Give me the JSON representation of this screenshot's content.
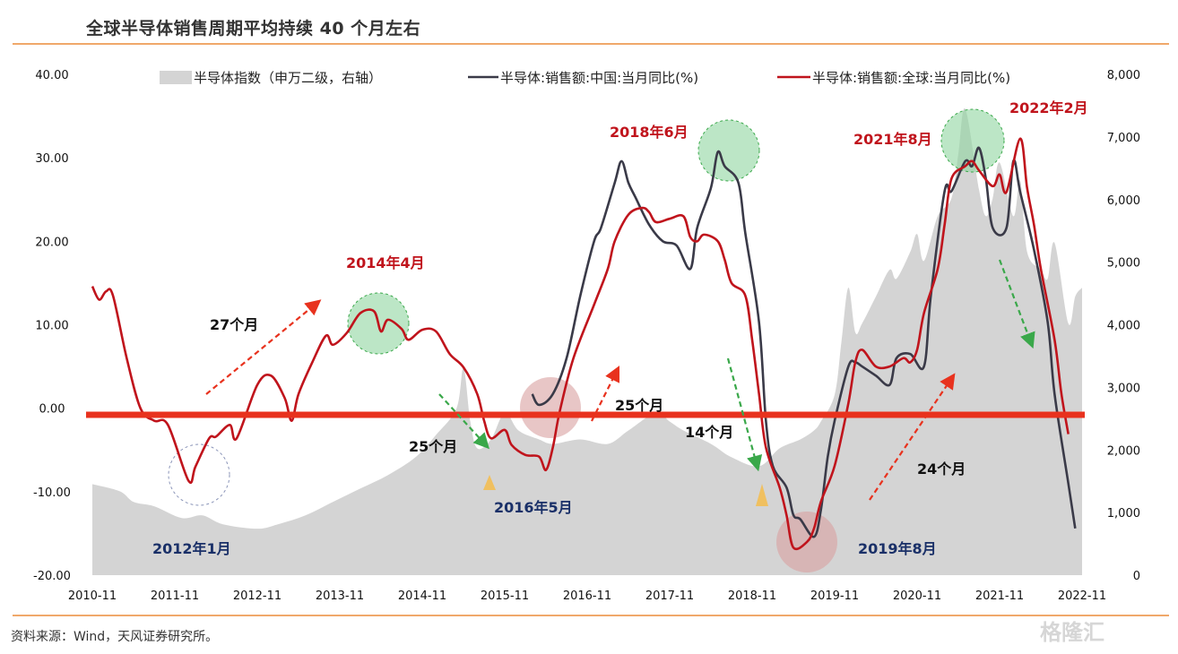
{
  "title": "全球半导体销售周期平均持续 40 个月左右",
  "source": "资料来源：Wind，天风证券研究所。",
  "watermark": "格隆汇",
  "chart_data": {
    "type": "line",
    "title": "全球半导体销售周期平均持续 40 个月左右",
    "xlim": [
      "2010-11",
      "2022-11"
    ],
    "x_ticks": [
      "2010-11",
      "2011-11",
      "2012-11",
      "2013-11",
      "2014-11",
      "2015-11",
      "2016-11",
      "2017-11",
      "2018-11",
      "2019-11",
      "2020-11",
      "2021-11",
      "2022-11"
    ],
    "y_left": {
      "lim": [
        -20,
        40
      ],
      "ticks": [
        "-20.00",
        "-10.00",
        "0.00",
        "10.00",
        "20.00",
        "30.00",
        "40.00"
      ]
    },
    "y_right": {
      "lim": [
        0,
        8000
      ],
      "ticks": [
        "0",
        "1,000",
        "2,000",
        "3,000",
        "4,000",
        "5,000",
        "6,000",
        "7,000",
        "8,000"
      ]
    },
    "grid": false,
    "legend_position": "top",
    "zero_line_color": "#e8321e",
    "series": [
      {
        "name": "半导体指数（申万二级，右轴）",
        "type": "area",
        "axis": "right",
        "color": "#d4d4d4",
        "points": [
          [
            "2010-11",
            1455
          ],
          [
            "2011-03",
            1340
          ],
          [
            "2011-05",
            1170
          ],
          [
            "2011-08",
            1100
          ],
          [
            "2011-12",
            913
          ],
          [
            "2012-03",
            955
          ],
          [
            "2012-06",
            813
          ],
          [
            "2012-11",
            742
          ],
          [
            "2013-02",
            813
          ],
          [
            "2013-06",
            955
          ],
          [
            "2013-10",
            1170
          ],
          [
            "2014-02",
            1384
          ],
          [
            "2014-06",
            1598
          ],
          [
            "2014-10",
            1883
          ],
          [
            "2015-01",
            2240
          ],
          [
            "2015-04",
            2668
          ],
          [
            "2015-05",
            3310
          ],
          [
            "2015-06",
            2454
          ],
          [
            "2015-07",
            2026
          ],
          [
            "2015-09",
            2168
          ],
          [
            "2015-11",
            2596
          ],
          [
            "2016-01",
            2311
          ],
          [
            "2016-04",
            2168
          ],
          [
            "2016-06",
            2097
          ],
          [
            "2016-10",
            2168
          ],
          [
            "2017-02",
            2097
          ],
          [
            "2017-05",
            2311
          ],
          [
            "2017-09",
            2596
          ],
          [
            "2017-11",
            2454
          ],
          [
            "2018-01",
            2311
          ],
          [
            "2018-05",
            2097
          ],
          [
            "2018-08",
            1883
          ],
          [
            "2018-12",
            1740
          ],
          [
            "2019-03",
            2026
          ],
          [
            "2019-06",
            2168
          ],
          [
            "2019-08",
            2311
          ],
          [
            "2019-09",
            2454
          ],
          [
            "2019-11",
            2882
          ],
          [
            "2019-12",
            3738
          ],
          [
            "2020-01",
            4593
          ],
          [
            "2020-02",
            3880
          ],
          [
            "2020-03",
            4022
          ],
          [
            "2020-05",
            4451
          ],
          [
            "2020-07",
            4879
          ],
          [
            "2020-08",
            4736
          ],
          [
            "2020-10",
            5164
          ],
          [
            "2020-11",
            5449
          ],
          [
            "2020-12",
            5021
          ],
          [
            "2021-02",
            5735
          ],
          [
            "2021-04",
            6020
          ],
          [
            "2021-05",
            6733
          ],
          [
            "2021-06",
            7447
          ],
          [
            "2021-08",
            6163
          ],
          [
            "2021-09",
            5735
          ],
          [
            "2021-10",
            6020
          ],
          [
            "2021-11",
            6591
          ],
          [
            "2022-01",
            5735
          ],
          [
            "2022-02",
            6305
          ],
          [
            "2022-03",
            5164
          ],
          [
            "2022-05",
            4879
          ],
          [
            "2022-06",
            4736
          ],
          [
            "2022-07",
            5307
          ],
          [
            "2022-09",
            4022
          ],
          [
            "2022-10",
            4451
          ],
          [
            "2022-11",
            4593
          ]
        ]
      },
      {
        "name": "半导体:销售额:中国:当月同比(%)",
        "type": "line",
        "axis": "left",
        "color": "#3a3a48",
        "points": [
          [
            "2016-03",
            1.7
          ],
          [
            "2016-04",
            0.4
          ],
          [
            "2016-06",
            1.7
          ],
          [
            "2016-08",
            6
          ],
          [
            "2016-10",
            13.5
          ],
          [
            "2016-12",
            20
          ],
          [
            "2017-01",
            21.6
          ],
          [
            "2017-03",
            27
          ],
          [
            "2017-04",
            29.6
          ],
          [
            "2017-05",
            27
          ],
          [
            "2017-06",
            25.3
          ],
          [
            "2017-08",
            22
          ],
          [
            "2017-10",
            20
          ],
          [
            "2017-12",
            19.5
          ],
          [
            "2018-02",
            16.7
          ],
          [
            "2018-03",
            21.6
          ],
          [
            "2018-05",
            26.4
          ],
          [
            "2018-06",
            30.7
          ],
          [
            "2018-07",
            29
          ],
          [
            "2018-09",
            27
          ],
          [
            "2018-10",
            21
          ],
          [
            "2018-12",
            10.3
          ],
          [
            "2019-01",
            -1.5
          ],
          [
            "2019-02",
            -6.9
          ],
          [
            "2019-04",
            -9.5
          ],
          [
            "2019-05",
            -12.8
          ],
          [
            "2019-06",
            -13.3
          ],
          [
            "2019-08",
            -15.4
          ],
          [
            "2019-09",
            -12.2
          ],
          [
            "2019-10",
            -5.8
          ],
          [
            "2019-11",
            -1.5
          ],
          [
            "2020-01",
            5
          ],
          [
            "2020-02",
            5.5
          ],
          [
            "2020-03",
            5
          ],
          [
            "2020-05",
            3.9
          ],
          [
            "2020-07",
            2.8
          ],
          [
            "2020-08",
            6
          ],
          [
            "2020-10",
            6.5
          ],
          [
            "2020-12",
            5
          ],
          [
            "2021-01",
            13.5
          ],
          [
            "2021-03",
            26
          ],
          [
            "2021-04",
            26
          ],
          [
            "2021-06",
            29.6
          ],
          [
            "2021-07",
            29
          ],
          [
            "2021-08",
            31.2
          ],
          [
            "2021-09",
            27.5
          ],
          [
            "2021-10",
            21.6
          ],
          [
            "2021-12",
            21.6
          ],
          [
            "2022-01",
            29.6
          ],
          [
            "2022-02",
            25.9
          ],
          [
            "2022-04",
            19
          ],
          [
            "2022-06",
            10.3
          ],
          [
            "2022-07",
            1.7
          ],
          [
            "2022-09",
            -9
          ],
          [
            "2022-10",
            -14.4
          ]
        ]
      },
      {
        "name": "半导体:销售额:全球:当月同比(%)",
        "type": "line",
        "axis": "left",
        "color": "#c0141c",
        "points": [
          [
            "2010-11",
            14.6
          ],
          [
            "2010-12",
            13
          ],
          [
            "2011-01",
            14
          ],
          [
            "2011-02",
            13.5
          ],
          [
            "2011-04",
            6
          ],
          [
            "2011-06",
            0
          ],
          [
            "2011-08",
            -1.5
          ],
          [
            "2011-10",
            -2
          ],
          [
            "2012-01",
            -8.7
          ],
          [
            "2012-02",
            -7
          ],
          [
            "2012-04",
            -3.6
          ],
          [
            "2012-05",
            -3.4
          ],
          [
            "2012-07",
            -2
          ],
          [
            "2012-08",
            -3.6
          ],
          [
            "2012-11",
            2.8
          ],
          [
            "2013-01",
            3.9
          ],
          [
            "2013-03",
            1.2
          ],
          [
            "2013-04",
            -1.5
          ],
          [
            "2013-05",
            1.7
          ],
          [
            "2013-07",
            5.5
          ],
          [
            "2013-09",
            8.7
          ],
          [
            "2013-10",
            7.6
          ],
          [
            "2013-12",
            9
          ],
          [
            "2014-02",
            11.4
          ],
          [
            "2014-04",
            11.6
          ],
          [
            "2014-05",
            9.2
          ],
          [
            "2014-06",
            10.6
          ],
          [
            "2014-08",
            9.5
          ],
          [
            "2014-09",
            8.2
          ],
          [
            "2014-11",
            9.4
          ],
          [
            "2015-01",
            9.2
          ],
          [
            "2015-03",
            6.5
          ],
          [
            "2015-05",
            4.9
          ],
          [
            "2015-07",
            1.7
          ],
          [
            "2015-08",
            -1.5
          ],
          [
            "2015-09",
            -3.6
          ],
          [
            "2015-11",
            -2.6
          ],
          [
            "2015-12",
            -4.4
          ],
          [
            "2016-02",
            -5.6
          ],
          [
            "2016-04",
            -5.8
          ],
          [
            "2016-05",
            -7.4
          ],
          [
            "2016-06",
            -4.7
          ],
          [
            "2016-07",
            -0.4
          ],
          [
            "2016-09",
            6
          ],
          [
            "2016-12",
            12.4
          ],
          [
            "2017-02",
            16.7
          ],
          [
            "2017-03",
            20
          ],
          [
            "2017-05",
            23.2
          ],
          [
            "2017-07",
            24
          ],
          [
            "2017-08",
            23.5
          ],
          [
            "2017-09",
            22.3
          ],
          [
            "2017-11",
            22.7
          ],
          [
            "2018-01",
            23
          ],
          [
            "2018-02",
            20.5
          ],
          [
            "2018-03",
            20
          ],
          [
            "2018-04",
            20.8
          ],
          [
            "2018-06",
            20
          ],
          [
            "2018-07",
            17.8
          ],
          [
            "2018-08",
            15
          ],
          [
            "2018-10",
            13.5
          ],
          [
            "2018-11",
            8.2
          ],
          [
            "2018-12",
            1.7
          ],
          [
            "2019-01",
            -4.7
          ],
          [
            "2019-03",
            -9.5
          ],
          [
            "2019-04",
            -12.8
          ],
          [
            "2019-05",
            -16.7
          ],
          [
            "2019-07",
            -16
          ],
          [
            "2019-08",
            -14.4
          ],
          [
            "2019-09",
            -11.2
          ],
          [
            "2019-11",
            -6.9
          ],
          [
            "2020-01",
            0.6
          ],
          [
            "2020-02",
            5.5
          ],
          [
            "2020-03",
            7
          ],
          [
            "2020-05",
            5
          ],
          [
            "2020-07",
            5
          ],
          [
            "2020-09",
            6
          ],
          [
            "2020-10",
            5.5
          ],
          [
            "2020-11",
            7
          ],
          [
            "2020-12",
            11.4
          ],
          [
            "2021-02",
            16.7
          ],
          [
            "2021-03",
            22
          ],
          [
            "2021-04",
            27.5
          ],
          [
            "2021-06",
            29
          ],
          [
            "2021-07",
            29.6
          ],
          [
            "2021-08",
            28.5
          ],
          [
            "2021-10",
            26.6
          ],
          [
            "2021-11",
            28
          ],
          [
            "2021-12",
            25.9
          ],
          [
            "2022-02",
            32.3
          ],
          [
            "2022-03",
            26.4
          ],
          [
            "2022-04",
            22
          ],
          [
            "2022-05",
            16.7
          ],
          [
            "2022-07",
            8.2
          ],
          [
            "2022-08",
            1.7
          ],
          [
            "2022-09",
            -3.1
          ]
        ]
      }
    ],
    "annotations": {
      "peak_2014": "2014年4月",
      "up_27": "27个月",
      "down_25a": "25个月",
      "trough_2016": "2016年5月",
      "trough_2012": "2012年1月",
      "peak_2018": "2018年6月",
      "up_25b": "25个月",
      "down_14": "14个月",
      "trough_2019": "2019年8月",
      "up_24": "24个月",
      "peak_2021": "2021年8月",
      "peak_2022": "2022年2月"
    }
  }
}
